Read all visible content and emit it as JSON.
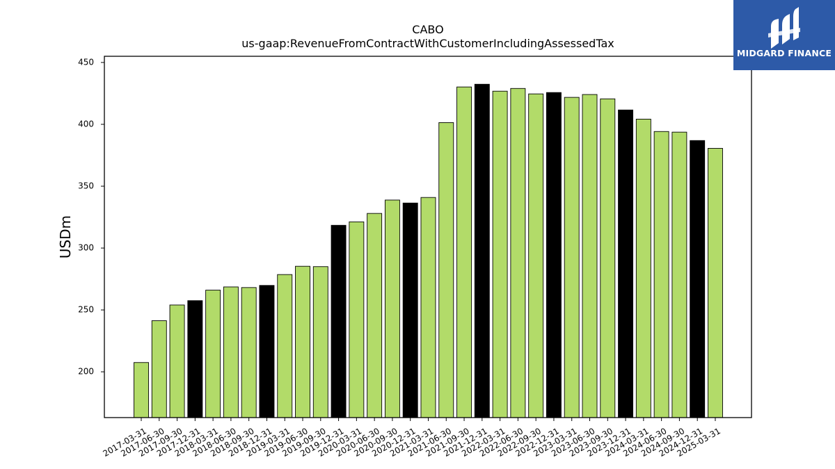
{
  "logo": {
    "text": "MIDGARD FINANCE",
    "background_color": "#2d5aa8"
  },
  "chart_data": {
    "type": "bar",
    "title": "CABO",
    "subtitle": "us-gaap:RevenueFromContractWithCustomerIncludingAssessedTax",
    "xlabel": "",
    "ylabel": "USDm",
    "ylim": [
      163,
      455
    ],
    "yticks": [
      200,
      250,
      300,
      350,
      400,
      450
    ],
    "grid": false,
    "legend": "none",
    "colors": {
      "default_bar": "#b2db69",
      "q4_bar": "#000000",
      "bar_edge": "#000000"
    },
    "categories": [
      "2017-03-31",
      "2017-06-30",
      "2017-09-30",
      "2017-12-31",
      "2018-03-31",
      "2018-06-30",
      "2018-09-30",
      "2018-12-31",
      "2019-03-31",
      "2019-06-30",
      "2019-09-30",
      "2019-12-31",
      "2020-03-31",
      "2020-06-30",
      "2020-09-30",
      "2020-12-31",
      "2021-03-31",
      "2021-06-30",
      "2021-09-30",
      "2021-12-31",
      "2022-03-31",
      "2022-06-30",
      "2022-09-30",
      "2022-12-31",
      "2023-03-31",
      "2023-06-30",
      "2023-09-30",
      "2023-12-31",
      "2024-03-31",
      "2024-06-30",
      "2024-09-30",
      "2024-12-31",
      "2025-03-31"
    ],
    "values": [
      207.5,
      241.3,
      254.0,
      257.5,
      266.0,
      268.6,
      268.1,
      269.8,
      278.6,
      285.3,
      285.0,
      318.4,
      321.2,
      328.0,
      338.8,
      336.4,
      340.9,
      401.4,
      430.2,
      432.4,
      426.8,
      429.0,
      424.6,
      425.7,
      421.8,
      424.1,
      420.6,
      411.6,
      404.2,
      394.2,
      393.7,
      386.9,
      380.6
    ],
    "highlighted": [
      false,
      false,
      false,
      true,
      false,
      false,
      false,
      true,
      false,
      false,
      false,
      true,
      false,
      false,
      false,
      true,
      false,
      false,
      false,
      true,
      false,
      false,
      false,
      true,
      false,
      false,
      false,
      true,
      false,
      false,
      false,
      true,
      false
    ]
  }
}
